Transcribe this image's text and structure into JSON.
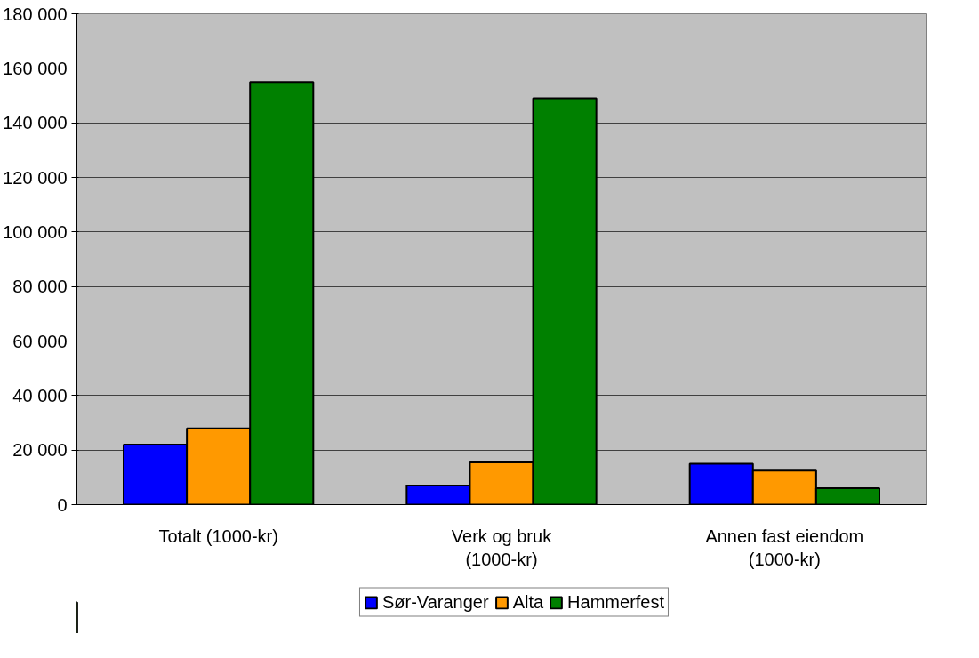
{
  "chart_data": {
    "type": "bar",
    "categories": [
      "Totalt (1000-kr)",
      "Verk og bruk (1000-kr)",
      "Annen fast eiendom (1000-kr)"
    ],
    "series": [
      {
        "name": "Sør-Varanger",
        "color": "#0000ff",
        "values": [
          22000,
          7000,
          15000
        ]
      },
      {
        "name": "Alta",
        "color": "#ff9900",
        "values": [
          28000,
          15500,
          12500
        ]
      },
      {
        "name": "Hammerfest",
        "color": "#008000",
        "values": [
          155000,
          149000,
          6000
        ]
      }
    ],
    "ylim": [
      0,
      180000
    ],
    "yticks": [
      {
        "value": 0,
        "label": "0"
      },
      {
        "value": 20000,
        "label": "20 000"
      },
      {
        "value": 40000,
        "label": "40 000"
      },
      {
        "value": 60000,
        "label": "60 000"
      },
      {
        "value": 80000,
        "label": "80 000"
      },
      {
        "value": 100000,
        "label": "100 000"
      },
      {
        "value": 120000,
        "label": "120 000"
      },
      {
        "value": 140000,
        "label": "140 000"
      },
      {
        "value": 160000,
        "label": "160 000"
      },
      {
        "value": 180000,
        "label": "180 000"
      }
    ],
    "grid": "y",
    "legend": "bottom"
  }
}
